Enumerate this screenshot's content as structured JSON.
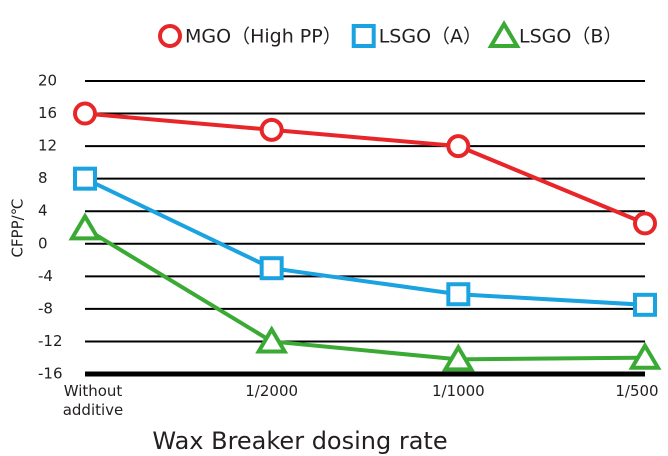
{
  "chart_data": {
    "type": "line",
    "xlabel": "Wax Breaker dosing rate",
    "ylabel": "CFPP/℃",
    "categories": [
      "Without additive",
      "1/2000",
      "1/1000",
      "1/500"
    ],
    "series": [
      {
        "name": "MGO（High PP）",
        "color": "#e8262a",
        "marker": "circle",
        "values": [
          16,
          14,
          12,
          2.5
        ]
      },
      {
        "name": "LSGO（A）",
        "color": "#1aa3e0",
        "marker": "square",
        "values": [
          8,
          -3,
          -6.2,
          -7.5
        ]
      },
      {
        "name": "LSGO（B）",
        "color": "#3aaa35",
        "marker": "triangle",
        "values": [
          1.9,
          -12,
          -14.2,
          -14
        ]
      }
    ],
    "ylim": [
      -16,
      20
    ],
    "yticks": [
      20,
      16,
      12,
      8,
      4,
      0,
      -4,
      -8,
      -12,
      -16
    ],
    "grid": true,
    "legend": "top"
  }
}
